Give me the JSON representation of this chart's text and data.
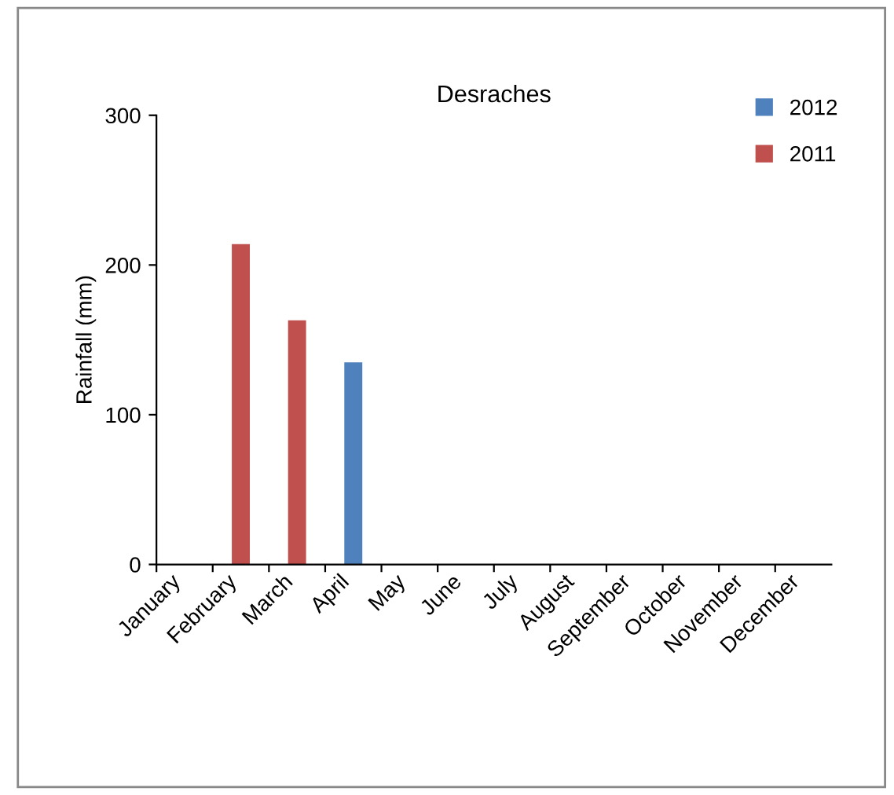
{
  "chart_data": {
    "type": "bar",
    "title": "Desraches",
    "ylabel": "Rainfall (mm)",
    "categories": [
      "January",
      "February",
      "March",
      "April",
      "May",
      "June",
      "July",
      "August",
      "September",
      "October",
      "November",
      "December"
    ],
    "series": [
      {
        "name": "2012",
        "color": "#4f81bd",
        "values": [
          null,
          null,
          null,
          135,
          null,
          null,
          null,
          null,
          null,
          null,
          null,
          null
        ]
      },
      {
        "name": "2011",
        "color": "#c0504d",
        "values": [
          null,
          214,
          163,
          null,
          null,
          null,
          null,
          null,
          null,
          null,
          null,
          null
        ]
      }
    ],
    "ylim": [
      0,
      300
    ],
    "yticks": [
      0,
      100,
      200,
      300
    ],
    "grid": false,
    "stacked": true,
    "legend": "top right"
  }
}
